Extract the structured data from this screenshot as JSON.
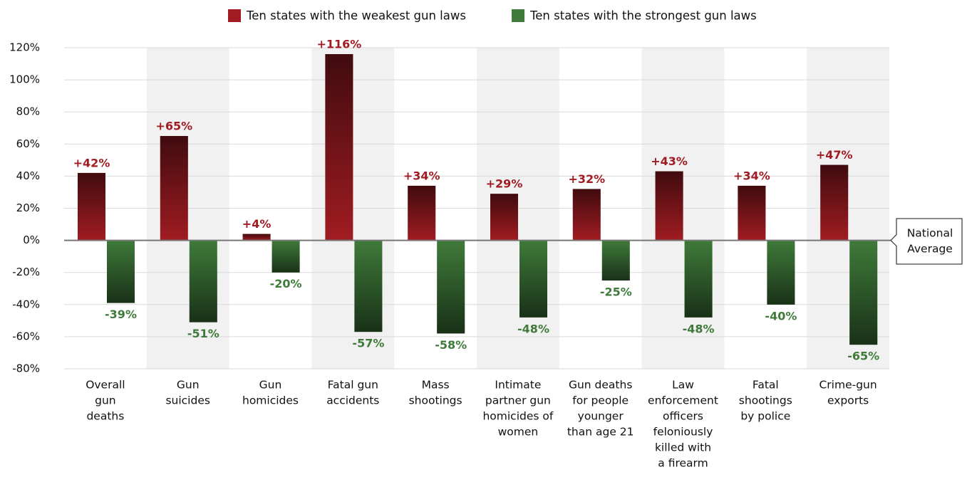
{
  "chart_data": {
    "type": "bar",
    "categories": [
      [
        "Overall",
        "gun",
        "deaths"
      ],
      [
        "Gun",
        "suicides"
      ],
      [
        "Gun",
        "homicides"
      ],
      [
        "Fatal gun",
        "accidents"
      ],
      [
        "Mass",
        "shootings"
      ],
      [
        "Intimate",
        "partner gun",
        "homicides of",
        "women"
      ],
      [
        "Gun deaths",
        "for people",
        "younger",
        "than age 21"
      ],
      [
        "Law",
        "enforcement",
        "officers",
        "feloniously",
        "killed with",
        "a firearm"
      ],
      [
        "Fatal",
        "shootings",
        "by police"
      ],
      [
        "Crime-gun",
        "exports"
      ]
    ],
    "series": [
      {
        "name": "Ten states with the weakest gun laws",
        "color": "#a01c22",
        "values": [
          42,
          65,
          4,
          116,
          34,
          29,
          32,
          43,
          34,
          47
        ],
        "value_labels": [
          "+42%",
          "+65%",
          "+4%",
          "+116%",
          "+34%",
          "+29%",
          "+32%",
          "+43%",
          "+34%",
          "+47%"
        ]
      },
      {
        "name": "Ten states with the strongest gun laws",
        "color": "#3f7a3a",
        "values": [
          -39,
          -51,
          -20,
          -57,
          -58,
          -48,
          -25,
          -48,
          -40,
          -65
        ],
        "value_labels": [
          "-39%",
          "-51%",
          "-20%",
          "-57%",
          "-58%",
          "-48%",
          "-25%",
          "-48%",
          "-40%",
          "-65%"
        ]
      }
    ],
    "ylim": [
      -80,
      120
    ],
    "yticks": [
      {
        "value": -80,
        "label": "-80%"
      },
      {
        "value": -60,
        "label": "-60%"
      },
      {
        "value": -40,
        "label": "-40%"
      },
      {
        "value": -20,
        "label": "-20%"
      },
      {
        "value": 0,
        "label": "0%"
      },
      {
        "value": 20,
        "label": "20%"
      },
      {
        "value": 40,
        "label": "40%"
      },
      {
        "value": 60,
        "label": "60%"
      },
      {
        "value": 80,
        "label": "80%"
      },
      {
        "value": 100,
        "label": "100%"
      },
      {
        "value": 120,
        "label": "120%"
      }
    ],
    "grid": true,
    "legend": "top",
    "annotation": [
      "National",
      "Average"
    ]
  }
}
